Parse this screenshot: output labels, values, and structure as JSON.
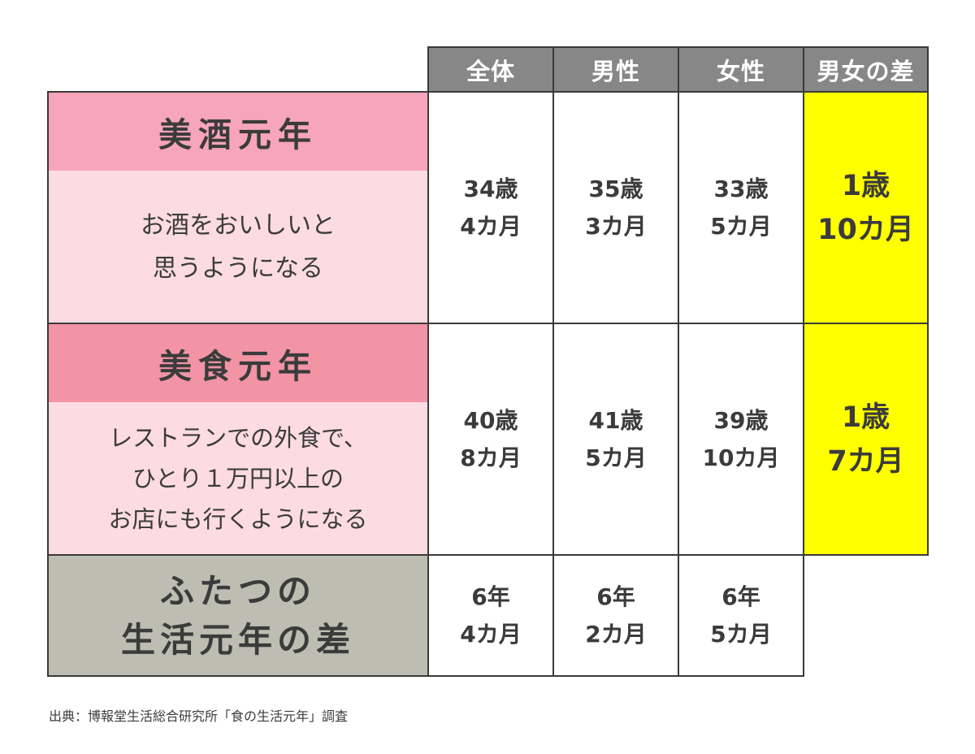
{
  "headers": {
    "all": "全体",
    "male": "男性",
    "female": "女性",
    "gap": "男女の差"
  },
  "rows": {
    "sake": {
      "title": "美酒元年",
      "description_line1": "お酒をおいしいと",
      "description_line2": "思うようになる",
      "all": [
        "34歳",
        "4カ月"
      ],
      "male": [
        "35歳",
        "3カ月"
      ],
      "female": [
        "33歳",
        "5カ月"
      ],
      "gap": [
        "1歳",
        "10カ月"
      ],
      "title_bg": "#f7a5bc",
      "desc_bg": "#fcdbe3"
    },
    "food": {
      "title": "美食元年",
      "description_line1": "レストランでの外食で、",
      "description_line2": "ひとり１万円以上の",
      "description_line3": "お店にも行くようになる",
      "all": [
        "40歳",
        "8カ月"
      ],
      "male": [
        "41歳",
        "5カ月"
      ],
      "female": [
        "39歳",
        "10カ月"
      ],
      "gap": [
        "1歳",
        "7カ月"
      ],
      "title_bg": "#f294a6",
      "desc_bg": "#fcdbe3"
    },
    "difference": {
      "title_line1": "ふたつの",
      "title_line2": "生活元年の差",
      "all": [
        "6年",
        "4カ月"
      ],
      "male": [
        "6年",
        "2カ月"
      ],
      "female": [
        "6年",
        "5カ月"
      ]
    }
  },
  "colors": {
    "header_bg": "#878787",
    "gap_highlight": "#ffff00",
    "difference_bg": "#bdbdb2",
    "border": "#3a3a3a"
  },
  "source": "出典：博報堂生活総合研究所「食の生活元年」調査"
}
